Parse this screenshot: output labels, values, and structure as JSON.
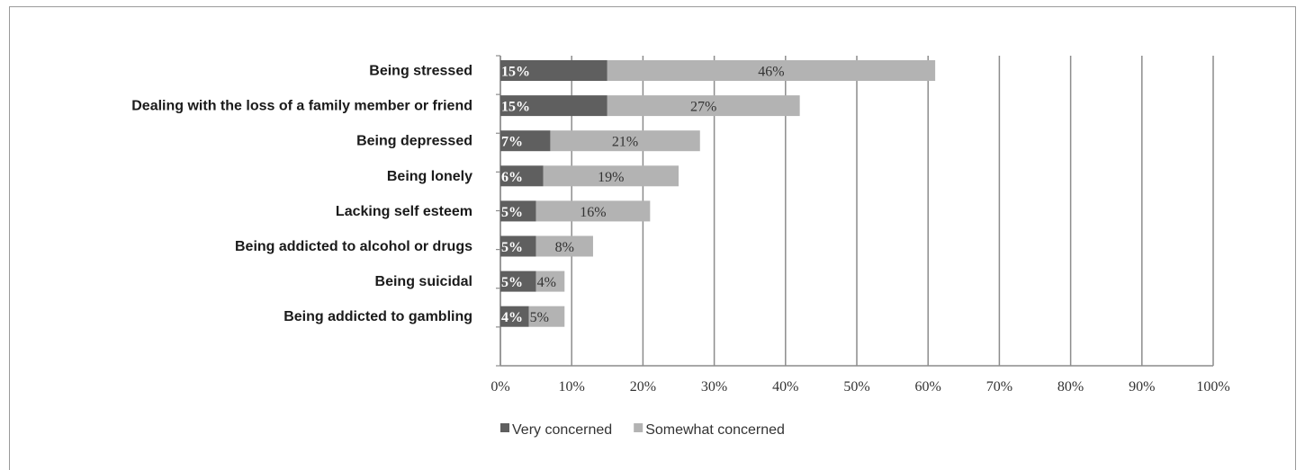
{
  "chart_data": {
    "type": "bar",
    "orientation": "horizontal",
    "stacked": true,
    "categories": [
      "Being stressed",
      "Dealing with the loss of a family member or friend",
      "Being depressed",
      "Being lonely",
      "Lacking self esteem",
      "Being addicted to alcohol or drugs",
      "Being suicidal",
      "Being addicted to gambling"
    ],
    "series": [
      {
        "name": "Very concerned",
        "color": "#5f5f5f",
        "label_color": "#ffffff",
        "values": [
          15,
          15,
          7,
          6,
          5,
          5,
          5,
          4
        ],
        "labels": [
          "15%",
          "15%",
          "7%",
          "6%",
          "5%",
          "5%",
          "5%",
          "4%"
        ]
      },
      {
        "name": "Somewhat concerned",
        "color": "#b3b3b3",
        "label_color": "#333333",
        "values": [
          46,
          27,
          21,
          19,
          16,
          8,
          4,
          5
        ],
        "labels": [
          "46%",
          "27%",
          "21%",
          "19%",
          "16%",
          "8%",
          "4%",
          "5%"
        ]
      }
    ],
    "xlim": [
      0,
      100
    ],
    "xticks": [
      "0%",
      "10%",
      "20%",
      "30%",
      "40%",
      "50%",
      "60%",
      "70%",
      "80%",
      "90%",
      "100%"
    ],
    "grid": "vertical",
    "legend_position": "bottom"
  }
}
